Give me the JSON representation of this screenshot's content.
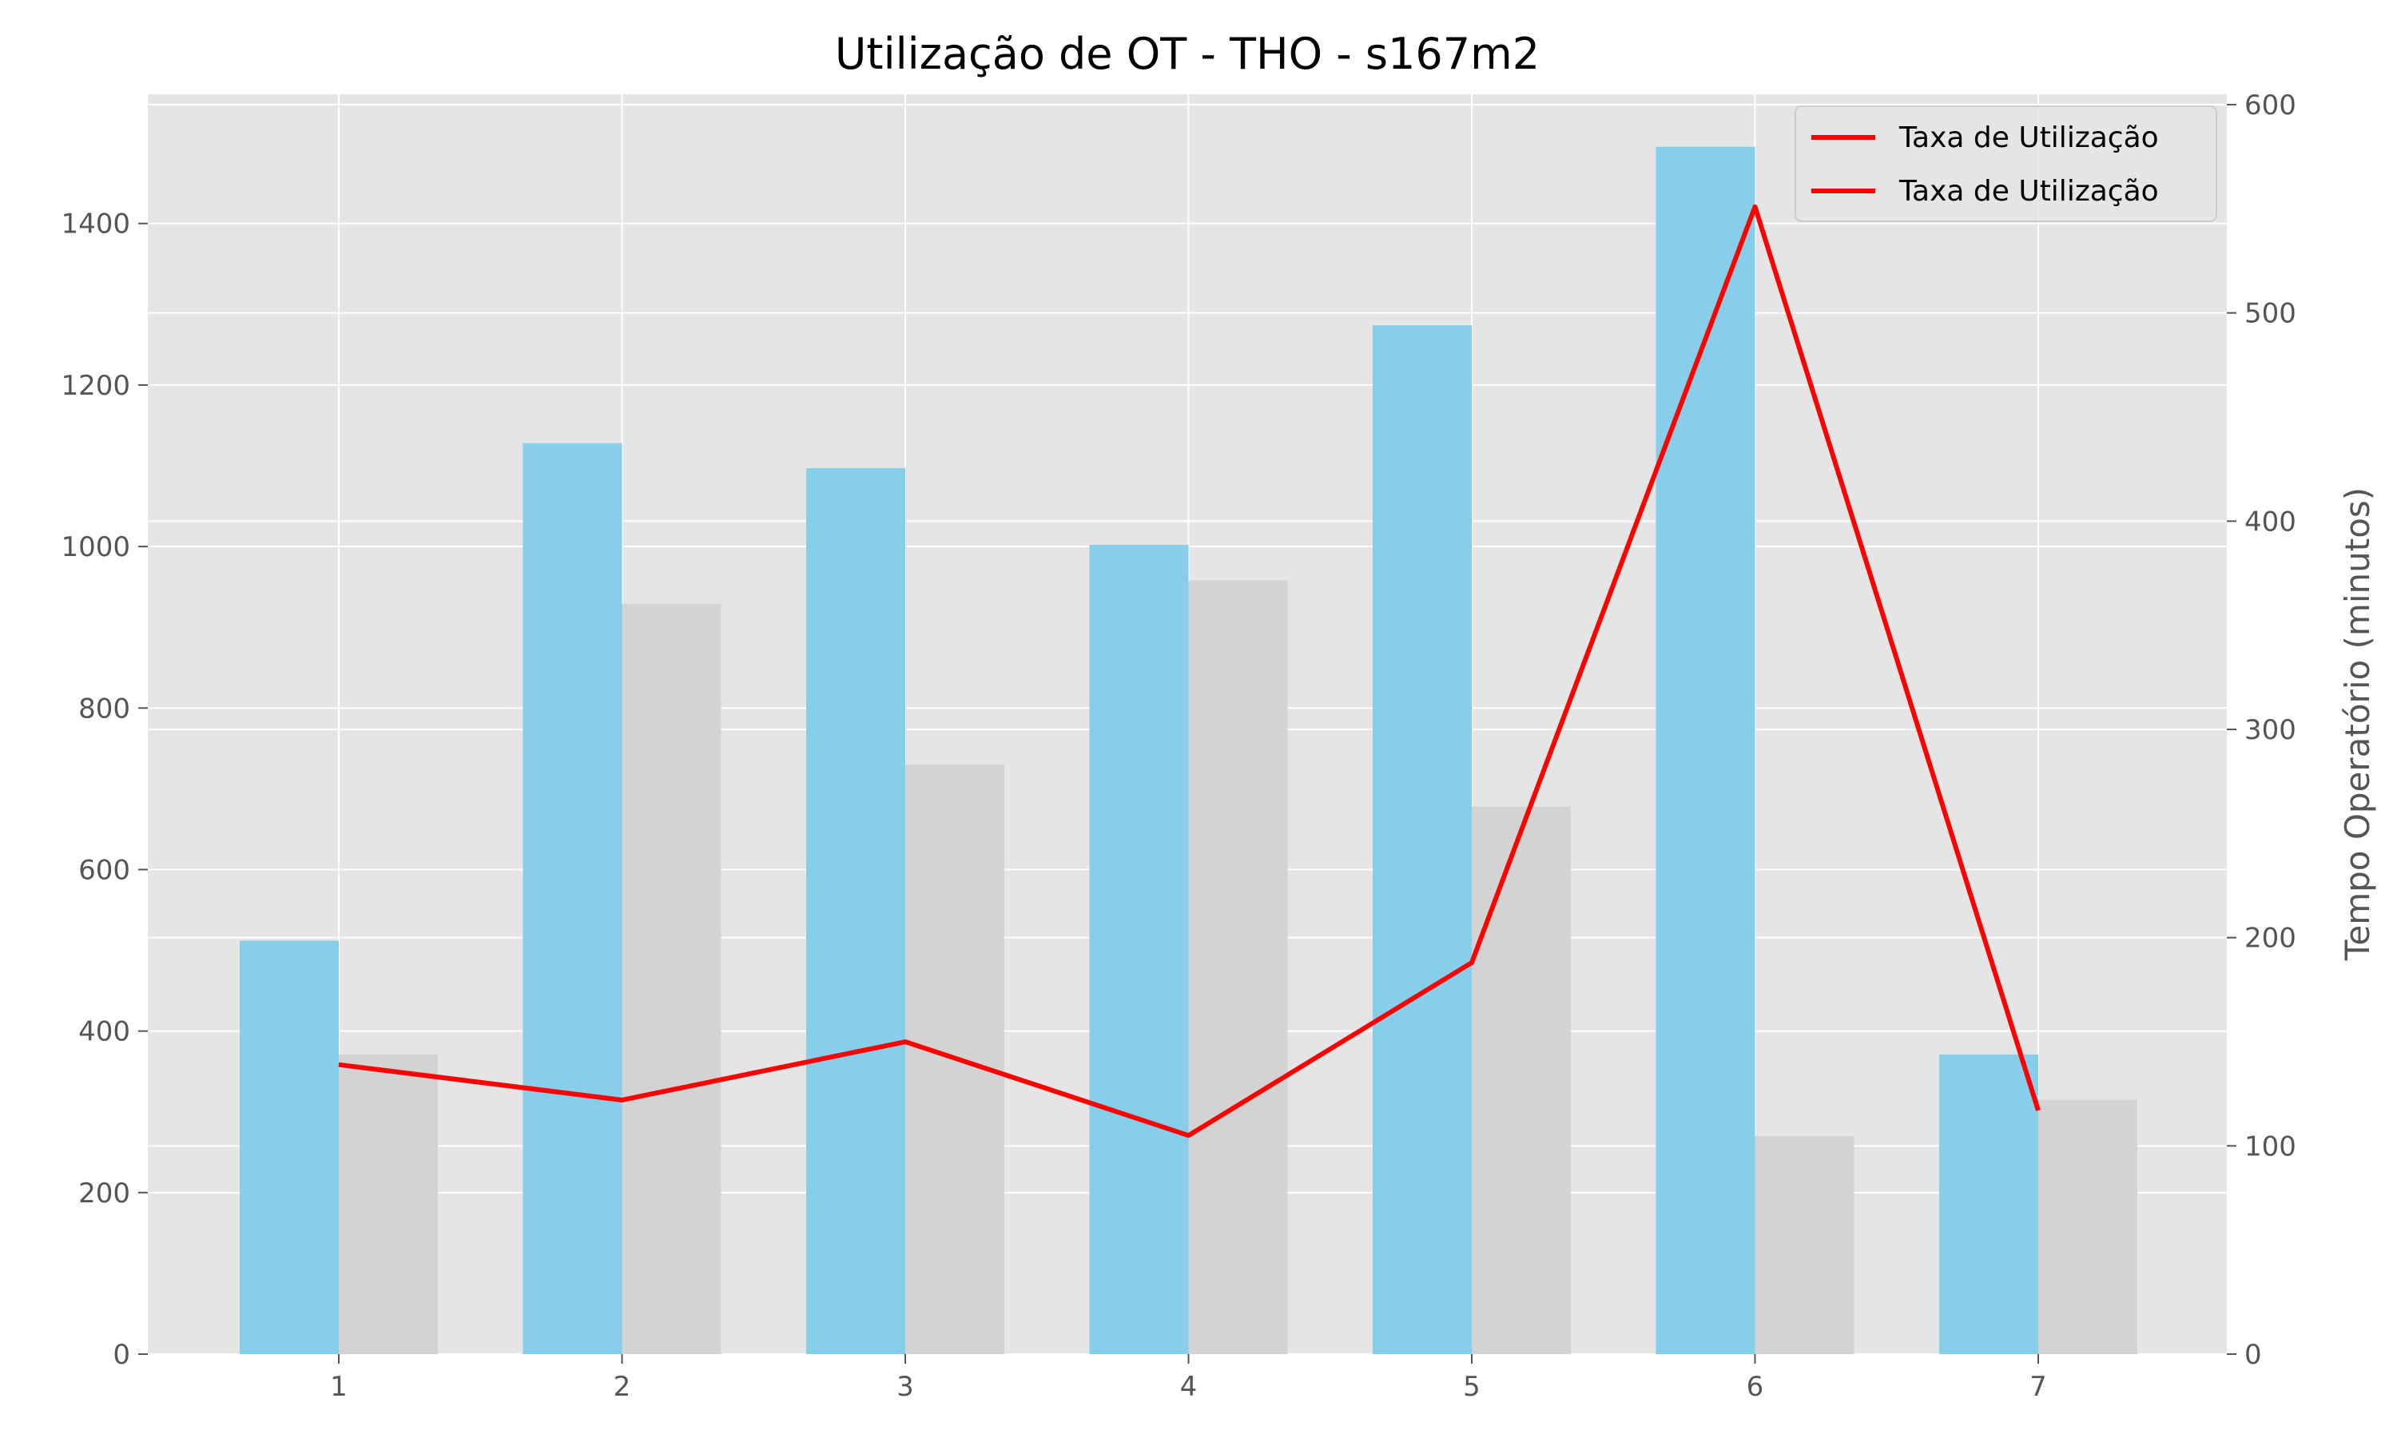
{
  "chart_data": {
    "type": "bar",
    "title": "Utilização de OT - THO - s167m2",
    "x": [
      1,
      2,
      3,
      4,
      5,
      6,
      7
    ],
    "xlabel": "",
    "ylabel_left": "",
    "ylabel_right": "Tempo Operatório (minutos)",
    "ylim_left": [
      0,
      1560
    ],
    "ylim_right": [
      0,
      605
    ],
    "yticks_left": [
      0,
      200,
      400,
      600,
      800,
      1000,
      1200,
      1400
    ],
    "yticks_right": [
      0,
      100,
      200,
      300,
      400,
      500,
      600
    ],
    "grid": true,
    "legend_position": "top-right",
    "legend": [
      "Taxa de Utilização",
      "Taxa de Utilização"
    ],
    "series": [
      {
        "kind": "bar",
        "axis": "left",
        "color": "#87CEEB",
        "values": [
          512,
          1128,
          1097,
          1002,
          1274,
          1495,
          371
        ]
      },
      {
        "kind": "bar",
        "axis": "left",
        "color": "#D3D3D3",
        "values": [
          371,
          929,
          730,
          958,
          678,
          270,
          315
        ]
      },
      {
        "kind": "line",
        "axis": "right",
        "color": "#FF0000",
        "values": [
          139,
          122,
          150,
          105,
          188,
          551,
          117
        ]
      }
    ]
  }
}
